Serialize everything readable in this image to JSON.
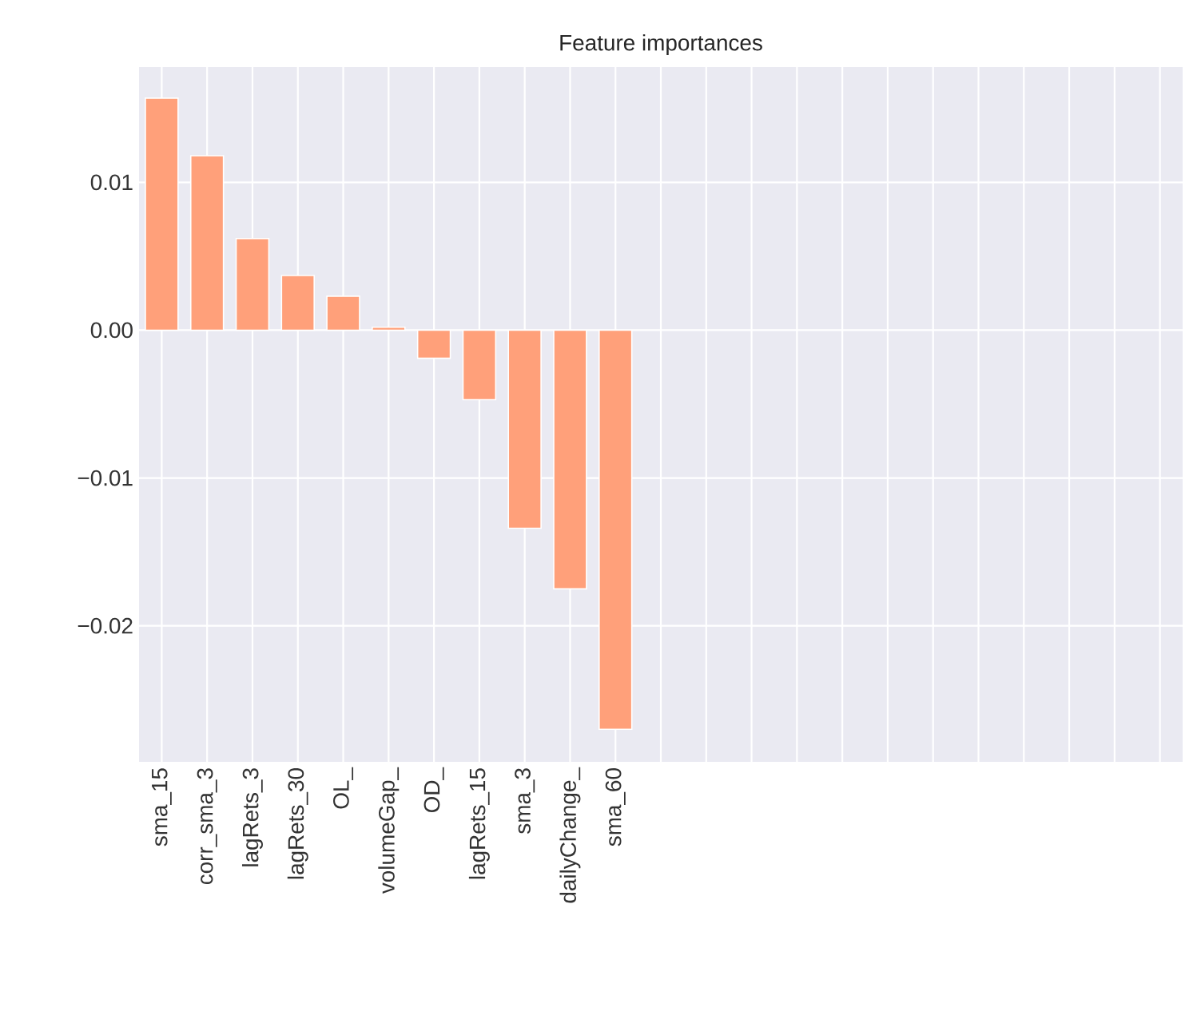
{
  "chart_data": {
    "type": "bar",
    "title": "Feature importances",
    "categories": [
      "sma_15",
      "corr_sma_3",
      "lagRets_3",
      "lagRets_30",
      "OL_",
      "volumeGap_",
      "OD_",
      "lagRets_15",
      "sma_3",
      "dailyChange_",
      "sma_60",
      null,
      null,
      null,
      null,
      null,
      null,
      null,
      null,
      null,
      null,
      null,
      null
    ],
    "values": [
      0.0157,
      0.0118,
      0.0062,
      0.0037,
      0.0023,
      0.0002,
      -0.0019,
      -0.0047,
      -0.0134,
      -0.0175,
      -0.027,
      null,
      null,
      null,
      null,
      null,
      null,
      null,
      null,
      null,
      null,
      null,
      null
    ],
    "color": "#ffa07a",
    "ylim": [
      -0.0292,
      0.0178
    ],
    "yticks": [
      {
        "value": -0.02,
        "label": "−0.02"
      },
      {
        "value": -0.01,
        "label": "−0.01"
      },
      {
        "value": 0,
        "label": "0.00"
      },
      0.01
    ],
    "grid": true
  }
}
